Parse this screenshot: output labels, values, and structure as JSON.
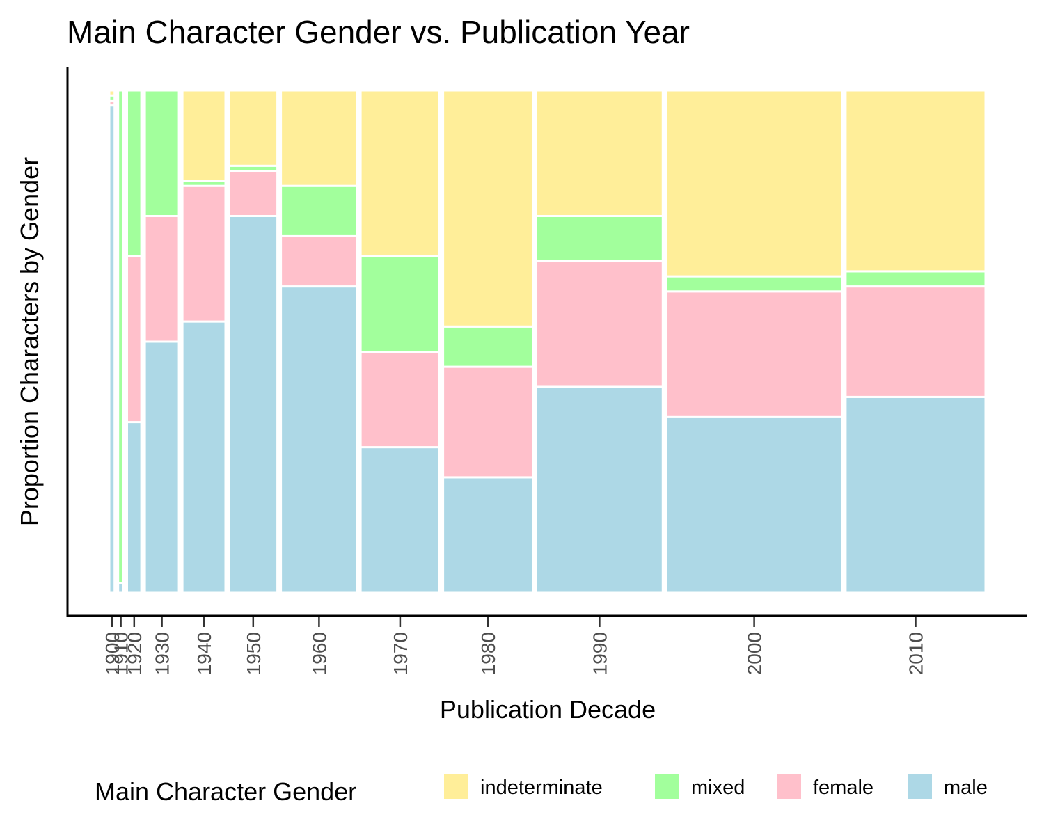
{
  "chart_data": {
    "type": "mosaic",
    "title": "Main Character Gender vs. Publication Year",
    "xlabel": "Publication Decade",
    "ylabel": "Proportion Characters by Gender",
    "legend": {
      "title": "Main Character Gender",
      "position": "bottom"
    },
    "series": [
      {
        "name": "indeterminate",
        "color": "#FFEE99"
      },
      {
        "name": "mixed",
        "color": "#A2FF9C"
      },
      {
        "name": "female",
        "color": "#FFC0CB"
      },
      {
        "name": "male",
        "color": "#ADD8E6"
      }
    ],
    "categories": [
      "1900",
      "1910",
      "1920",
      "1930",
      "1940",
      "1950",
      "1960",
      "1970",
      "1980",
      "1990",
      "2000",
      "2010"
    ],
    "column_widths": [
      0.006,
      0.006,
      0.016,
      0.038,
      0.048,
      0.054,
      0.085,
      0.088,
      0.1,
      0.141,
      0.196,
      0.156
    ],
    "proportions": [
      {
        "decade": "1900",
        "indeterminate": 0.01,
        "mixed": 0.01,
        "female": 0.01,
        "male": 0.97
      },
      {
        "decade": "1910",
        "indeterminate": 0.0,
        "mixed": 0.98,
        "female": 0.0,
        "male": 0.02
      },
      {
        "decade": "1920",
        "indeterminate": 0.0,
        "mixed": 0.33,
        "female": 0.33,
        "male": 0.34
      },
      {
        "decade": "1930",
        "indeterminate": 0.0,
        "mixed": 0.25,
        "female": 0.25,
        "male": 0.5
      },
      {
        "decade": "1940",
        "indeterminate": 0.18,
        "mixed": 0.01,
        "female": 0.27,
        "male": 0.54
      },
      {
        "decade": "1950",
        "indeterminate": 0.15,
        "mixed": 0.01,
        "female": 0.09,
        "male": 0.75
      },
      {
        "decade": "1960",
        "indeterminate": 0.19,
        "mixed": 0.1,
        "female": 0.1,
        "male": 0.61
      },
      {
        "decade": "1970",
        "indeterminate": 0.33,
        "mixed": 0.19,
        "female": 0.19,
        "male": 0.29
      },
      {
        "decade": "1980",
        "indeterminate": 0.47,
        "mixed": 0.08,
        "female": 0.22,
        "male": 0.23
      },
      {
        "decade": "1990",
        "indeterminate": 0.25,
        "mixed": 0.09,
        "female": 0.25,
        "male": 0.41
      },
      {
        "decade": "2000",
        "indeterminate": 0.37,
        "mixed": 0.03,
        "female": 0.25,
        "male": 0.35
      },
      {
        "decade": "2010",
        "indeterminate": 0.36,
        "mixed": 0.03,
        "female": 0.22,
        "male": 0.39
      }
    ]
  }
}
